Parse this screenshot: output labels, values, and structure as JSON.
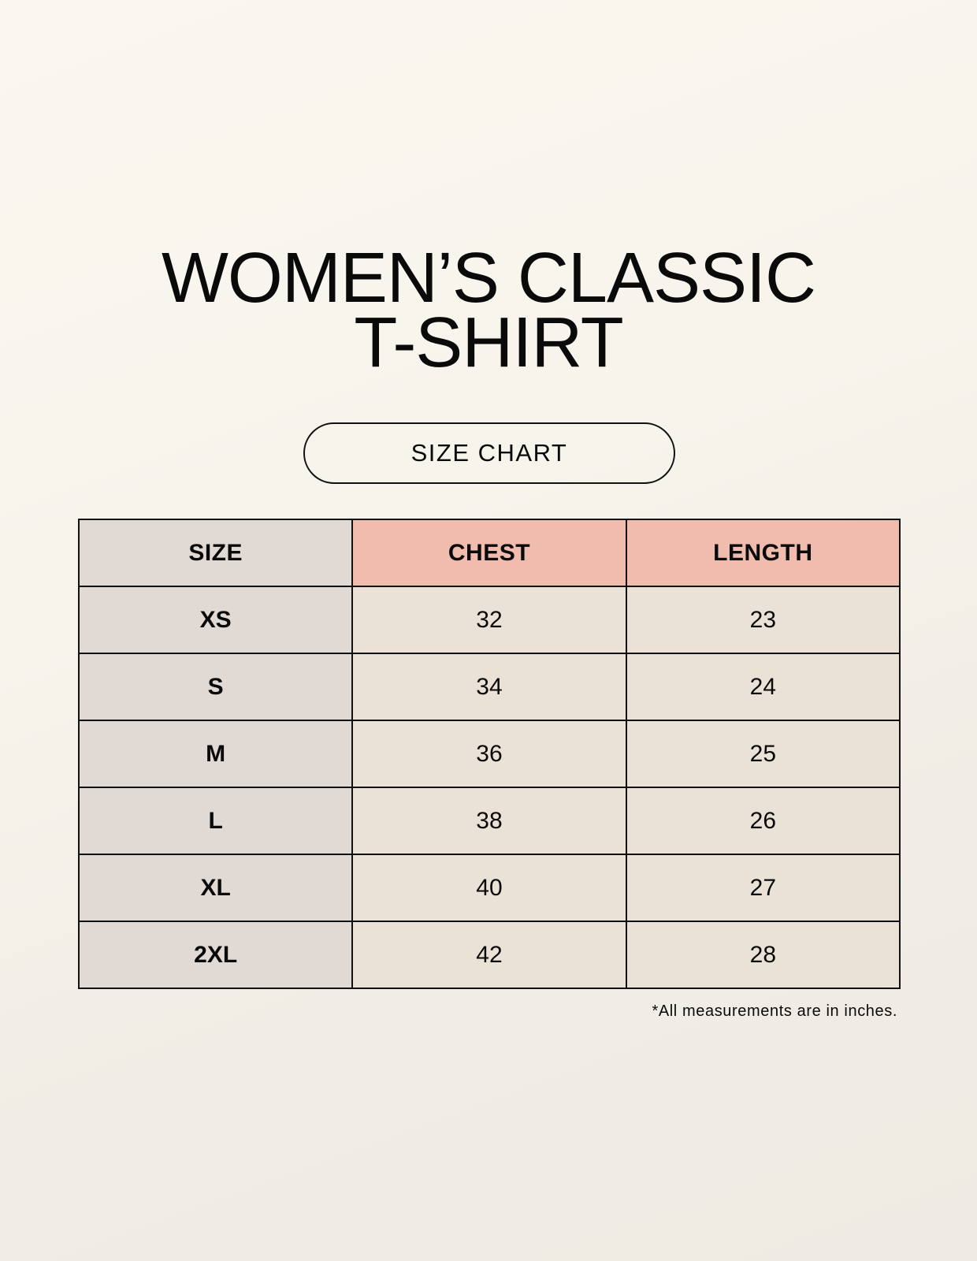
{
  "title": {
    "line1": "WOMEN’S CLASSIC",
    "line2": "T-SHIRT"
  },
  "subtitle": "SIZE CHART",
  "table": {
    "headers": [
      "SIZE",
      "CHEST",
      "LENGTH"
    ],
    "rows": [
      [
        "XS",
        "32",
        "23"
      ],
      [
        "S",
        "34",
        "24"
      ],
      [
        "M",
        "36",
        "25"
      ],
      [
        "L",
        "38",
        "26"
      ],
      [
        "XL",
        "40",
        "27"
      ],
      [
        "2XL",
        "42",
        "28"
      ]
    ]
  },
  "footnote": "*All measurements are in inches.",
  "colors": {
    "size_column": "#e1d9d3",
    "header_accent": "#efbcae",
    "cell": "#ebe2d7",
    "background": "#f8f5ee"
  }
}
